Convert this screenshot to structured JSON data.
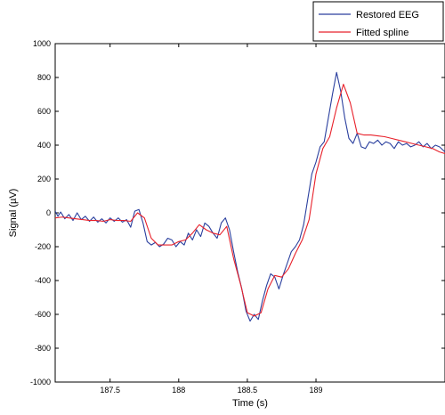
{
  "chart_data": {
    "type": "line",
    "xlabel": "Time (s)",
    "ylabel": "Signal (µV)",
    "xlim": [
      187.1,
      189.94
    ],
    "ylim": [
      -1000,
      1000
    ],
    "xticks": [
      187.5,
      188,
      188.5,
      189
    ],
    "xtick_labels": [
      "187.5",
      "188",
      "188.5",
      "189"
    ],
    "yticks": [
      -1000,
      -800,
      -600,
      -400,
      -200,
      0,
      200,
      400,
      600,
      800,
      1000
    ],
    "ytick_labels": [
      "-1000",
      "-800",
      "-600",
      "-400",
      "-200",
      "0",
      "200",
      "400",
      "600",
      "800",
      "1000"
    ],
    "grid": false,
    "legend_position": "top-right",
    "series": [
      {
        "name": "Restored EEG",
        "color": "#2a3f9e",
        "x": [
          187.1,
          187.12,
          187.14,
          187.17,
          187.2,
          187.23,
          187.26,
          187.29,
          187.32,
          187.35,
          187.38,
          187.41,
          187.44,
          187.47,
          187.5,
          187.53,
          187.56,
          187.59,
          187.62,
          187.65,
          187.68,
          187.71,
          187.74,
          187.77,
          187.8,
          187.83,
          187.86,
          187.89,
          187.92,
          187.95,
          187.98,
          188.01,
          188.04,
          188.07,
          188.1,
          188.13,
          188.16,
          188.19,
          188.22,
          188.25,
          188.28,
          188.31,
          188.34,
          188.37,
          188.4,
          188.43,
          188.46,
          188.49,
          188.52,
          188.55,
          188.58,
          188.61,
          188.64,
          188.67,
          188.7,
          188.73,
          188.76,
          188.79,
          188.82,
          188.85,
          188.88,
          188.91,
          188.94,
          188.97,
          189.0,
          189.03,
          189.06,
          189.09,
          189.12,
          189.15,
          189.18,
          189.21,
          189.24,
          189.27,
          189.3,
          189.33,
          189.36,
          189.39,
          189.42,
          189.45,
          189.48,
          189.51,
          189.54,
          189.57,
          189.6,
          189.63,
          189.66,
          189.69,
          189.72,
          189.75,
          189.78,
          189.81,
          189.84,
          189.87,
          189.9,
          189.94
        ],
        "values": [
          10,
          -20,
          5,
          -35,
          -10,
          -45,
          0,
          -40,
          -20,
          -50,
          -25,
          -55,
          -35,
          -60,
          -30,
          -50,
          -30,
          -55,
          -40,
          -85,
          10,
          20,
          -60,
          -170,
          -190,
          -175,
          -200,
          -185,
          -150,
          -160,
          -200,
          -170,
          -190,
          -120,
          -160,
          -100,
          -140,
          -60,
          -80,
          -120,
          -150,
          -60,
          -30,
          -100,
          -230,
          -350,
          -450,
          -580,
          -640,
          -600,
          -630,
          -520,
          -430,
          -360,
          -380,
          -450,
          -370,
          -300,
          -230,
          -200,
          -160,
          -70,
          80,
          230,
          300,
          390,
          420,
          560,
          700,
          830,
          720,
          560,
          440,
          410,
          470,
          390,
          380,
          420,
          410,
          430,
          400,
          420,
          410,
          380,
          420,
          400,
          410,
          390,
          400,
          420,
          390,
          410,
          380,
          400,
          390,
          360
        ]
      },
      {
        "name": "Fitted spline",
        "color": "#e8202a",
        "x": [
          187.1,
          187.15,
          187.2,
          187.25,
          187.3,
          187.35,
          187.4,
          187.45,
          187.5,
          187.55,
          187.6,
          187.65,
          187.7,
          187.75,
          187.8,
          187.85,
          187.9,
          187.95,
          188.0,
          188.05,
          188.1,
          188.15,
          188.2,
          188.25,
          188.3,
          188.35,
          188.4,
          188.45,
          188.5,
          188.55,
          188.6,
          188.65,
          188.7,
          188.75,
          188.8,
          188.85,
          188.9,
          188.95,
          189.0,
          189.05,
          189.1,
          189.15,
          189.2,
          189.25,
          189.3,
          189.35,
          189.4,
          189.45,
          189.5,
          189.55,
          189.6,
          189.65,
          189.7,
          189.75,
          189.8,
          189.85,
          189.9,
          189.94
        ],
        "values": [
          -30,
          -25,
          -30,
          -35,
          -40,
          -45,
          -45,
          -50,
          -40,
          -45,
          -45,
          -50,
          0,
          -30,
          -150,
          -190,
          -190,
          -190,
          -170,
          -160,
          -120,
          -70,
          -100,
          -120,
          -130,
          -80,
          -270,
          -420,
          -590,
          -610,
          -590,
          -450,
          -370,
          -380,
          -330,
          -240,
          -160,
          -40,
          230,
          380,
          450,
          620,
          760,
          650,
          470,
          460,
          460,
          455,
          450,
          440,
          430,
          420,
          410,
          400,
          390,
          380,
          360,
          350
        ]
      }
    ]
  }
}
